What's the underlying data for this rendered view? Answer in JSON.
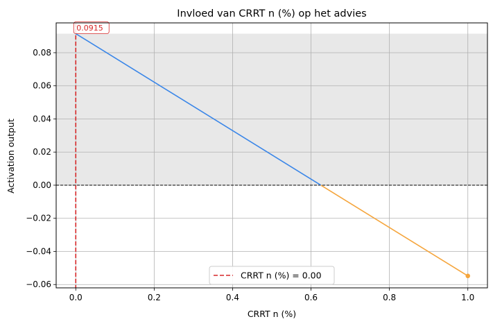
{
  "chart_data": {
    "type": "line",
    "title": "Invloed van CRRT n (%) op het advies",
    "xlabel": "CRRT n (%)",
    "ylabel": "Activation output",
    "xlim": [
      -0.05,
      1.05
    ],
    "ylim": [
      -0.062,
      0.098
    ],
    "xticks": [
      0.0,
      0.2,
      0.4,
      0.6,
      0.8,
      1.0
    ],
    "xtick_labels": [
      "0.0",
      "0.2",
      "0.4",
      "0.6",
      "0.8",
      "1.0"
    ],
    "yticks": [
      -0.06,
      -0.04,
      -0.02,
      0.0,
      0.02,
      0.04,
      0.06,
      0.08
    ],
    "ytick_labels": [
      "−0.06",
      "−0.04",
      "−0.02",
      "0.00",
      "0.02",
      "0.04",
      "0.06",
      "0.08"
    ],
    "grid": true,
    "series": [
      {
        "color": "#3a86e8",
        "x": [
          0.0,
          0.625
        ],
        "y": [
          0.0915,
          0.0
        ]
      },
      {
        "color": "#f5a53c",
        "x": [
          0.625,
          1.0
        ],
        "y": [
          0.0,
          -0.0548
        ]
      }
    ],
    "endpoint_marker": {
      "x": 1.0,
      "y": -0.0548,
      "color": "#f5a53c"
    },
    "shaded_band": {
      "y_from": 0.0,
      "y_to": 0.0915,
      "color": "#e8e8e8"
    },
    "zero_line": {
      "y": 0.0,
      "color": "#000000"
    },
    "marker_line": {
      "x": 0.0,
      "color": "#d62728",
      "label": "CRRT n (%) = 0.00"
    },
    "annotation": {
      "text": "0.0915",
      "x": 0.0,
      "y": 0.0915,
      "color": "#d62728"
    },
    "legend_position": "lower-center"
  }
}
